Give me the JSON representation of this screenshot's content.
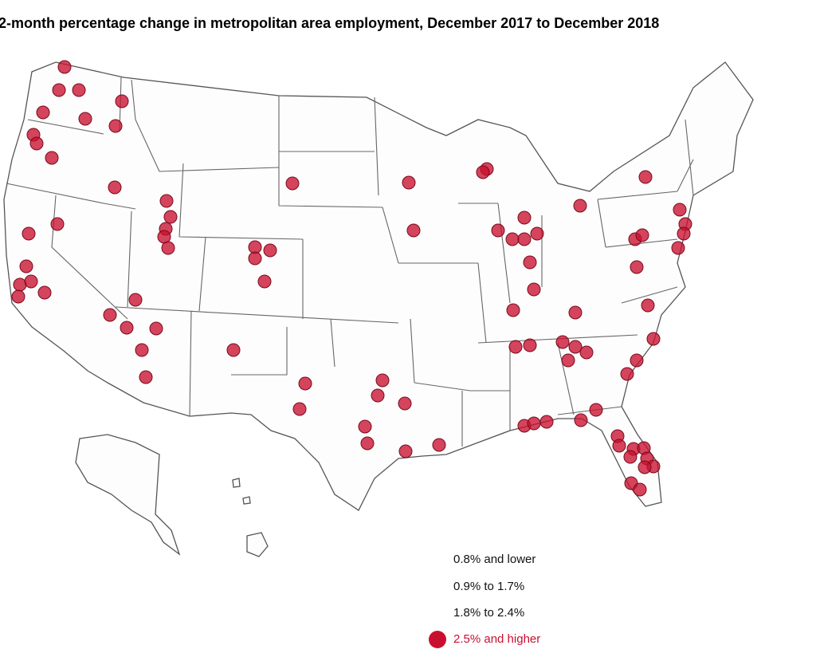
{
  "title": "2-month percentage change in metropolitan area employment, December 2017 to December 2018",
  "legend": {
    "items": [
      "0.8% and lower",
      "0.9% to 1.7%",
      "1.8% to 2.4%",
      "2.5% and higher"
    ]
  }
}
